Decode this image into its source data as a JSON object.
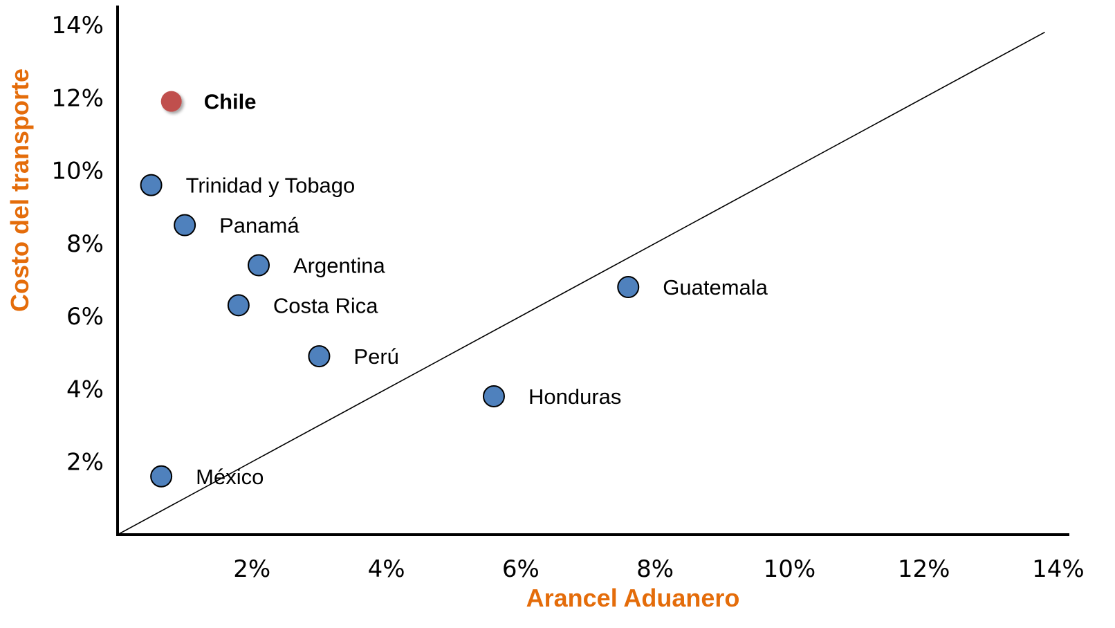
{
  "chart_data": {
    "type": "scatter",
    "title": "",
    "xlabel": "Arancel Aduanero",
    "ylabel": "Costo del transporte",
    "xlim": [
      0,
      14
    ],
    "ylim": [
      0,
      14
    ],
    "x_ticks": [
      {
        "value": 2,
        "label": "2%"
      },
      {
        "value": 4,
        "label": "4%"
      },
      {
        "value": 6,
        "label": "6%"
      },
      {
        "value": 8,
        "label": "8%"
      },
      {
        "value": 10,
        "label": "10%"
      },
      {
        "value": 12,
        "label": "12%"
      },
      {
        "value": 14,
        "label": "14%"
      }
    ],
    "y_ticks": [
      {
        "value": 2,
        "label": "2%"
      },
      {
        "value": 4,
        "label": "4%"
      },
      {
        "value": 6,
        "label": "6%"
      },
      {
        "value": 8,
        "label": "8%"
      },
      {
        "value": 10,
        "label": "10%"
      },
      {
        "value": 12,
        "label": "12%"
      },
      {
        "value": 14,
        "label": "14%"
      }
    ],
    "points": [
      {
        "label": "Chile",
        "x": 0.8,
        "y": 11.9,
        "highlight": true
      },
      {
        "label": "Trinidad y Tobago",
        "x": 0.5,
        "y": 9.6,
        "highlight": false
      },
      {
        "label": "Panamá",
        "x": 1.0,
        "y": 8.5,
        "highlight": false
      },
      {
        "label": "Argentina",
        "x": 2.1,
        "y": 7.4,
        "highlight": false
      },
      {
        "label": "Costa Rica",
        "x": 1.8,
        "y": 6.3,
        "highlight": false
      },
      {
        "label": "Perú",
        "x": 3.0,
        "y": 4.9,
        "highlight": false
      },
      {
        "label": "Guatemala",
        "x": 7.6,
        "y": 6.8,
        "highlight": false
      },
      {
        "label": "Honduras",
        "x": 5.6,
        "y": 3.8,
        "highlight": false
      },
      {
        "label": "México",
        "x": 0.65,
        "y": 1.6,
        "highlight": false
      }
    ],
    "reference_line": {
      "from": [
        0,
        0
      ],
      "to": [
        13.8,
        13.8
      ]
    },
    "grid": false,
    "legend": "none",
    "colors": {
      "point_fill": "#4F81BD",
      "point_stroke": "#000000",
      "highlight_fill": "#C0504D",
      "highlight_label": "#A94442",
      "axis_title": "#E46C0A",
      "axis_line": "#000000"
    }
  }
}
